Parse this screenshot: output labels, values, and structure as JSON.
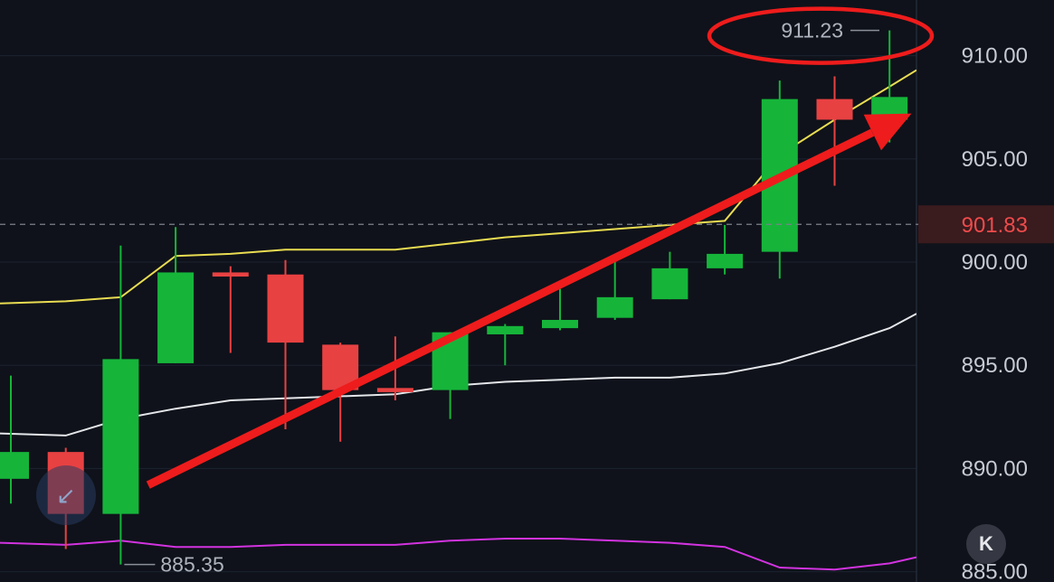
{
  "chart_data": {
    "type": "candlestick",
    "y_axis": {
      "ticks": [
        910,
        905,
        900,
        895,
        890,
        885
      ],
      "tick_labels": [
        "910.00",
        "905.00",
        "900.00",
        "895.00",
        "890.00",
        "885.00"
      ],
      "range": [
        884.5,
        912.7
      ]
    },
    "candles": [
      {
        "open": 889.5,
        "high": 894.5,
        "low": 888.3,
        "close": 890.8
      },
      {
        "open": 890.8,
        "high": 891.0,
        "low": 886.1,
        "close": 887.8
      },
      {
        "open": 887.8,
        "high": 900.8,
        "low": 885.35,
        "close": 895.3
      },
      {
        "open": 895.1,
        "high": 901.7,
        "low": 895.1,
        "close": 899.5
      },
      {
        "open": 899.5,
        "high": 899.8,
        "low": 895.6,
        "close": 899.3
      },
      {
        "open": 899.4,
        "high": 900.1,
        "low": 891.9,
        "close": 896.1
      },
      {
        "open": 896.0,
        "high": 896.1,
        "low": 891.3,
        "close": 893.8
      },
      {
        "open": 893.9,
        "high": 896.4,
        "low": 893.3,
        "close": 893.7
      },
      {
        "open": 893.8,
        "high": 896.6,
        "low": 892.4,
        "close": 896.6
      },
      {
        "open": 896.5,
        "high": 897.0,
        "low": 895.0,
        "close": 896.9
      },
      {
        "open": 896.8,
        "high": 898.7,
        "low": 896.7,
        "close": 897.2
      },
      {
        "open": 897.3,
        "high": 900.0,
        "low": 897.2,
        "close": 898.3
      },
      {
        "open": 898.2,
        "high": 900.5,
        "low": 898.2,
        "close": 899.7
      },
      {
        "open": 899.7,
        "high": 901.8,
        "low": 899.4,
        "close": 900.4
      },
      {
        "open": 900.5,
        "high": 908.8,
        "low": 899.2,
        "close": 907.9
      },
      {
        "open": 907.9,
        "high": 909.0,
        "low": 903.7,
        "close": 906.9
      },
      {
        "open": 906.9,
        "high": 911.23,
        "low": 905.8,
        "close": 908.0
      }
    ],
    "series": [
      {
        "values": [
          898.0,
          898.1,
          898.3,
          900.3,
          900.4,
          900.6,
          900.6,
          900.6,
          900.9,
          901.2,
          901.4,
          901.6,
          901.8,
          902.0,
          905.2,
          906.9,
          908.5,
          909.3
        ],
        "color": "#e9dc52"
      },
      {
        "values": [
          891.7,
          891.6,
          892.4,
          892.9,
          893.3,
          893.4,
          893.5,
          893.6,
          894.0,
          894.2,
          894.3,
          894.4,
          894.4,
          894.6,
          895.1,
          895.9,
          896.8,
          897.5
        ],
        "color": "#e4e6ea"
      },
      {
        "values": [
          886.4,
          886.3,
          886.5,
          886.2,
          886.2,
          886.3,
          886.3,
          886.3,
          886.5,
          886.6,
          886.6,
          886.5,
          886.4,
          886.2,
          885.2,
          885.1,
          885.4,
          885.7
        ],
        "color": "#d233e0"
      }
    ],
    "current_price": {
      "value": 901.83,
      "label": "901.83"
    },
    "annotations": {
      "high_label": "911.23",
      "low_label": "885.35",
      "circled": "911.23",
      "arrow": {
        "from": {
          "candle": 2.5,
          "price": 889.2
        },
        "to": {
          "candle": 16.4,
          "price": 907.2
        }
      }
    },
    "colors": {
      "up": "#16b53a",
      "down": "#e84142",
      "grid": "#1c2230",
      "arrow": "#ee1c1c"
    },
    "grid": true
  }
}
